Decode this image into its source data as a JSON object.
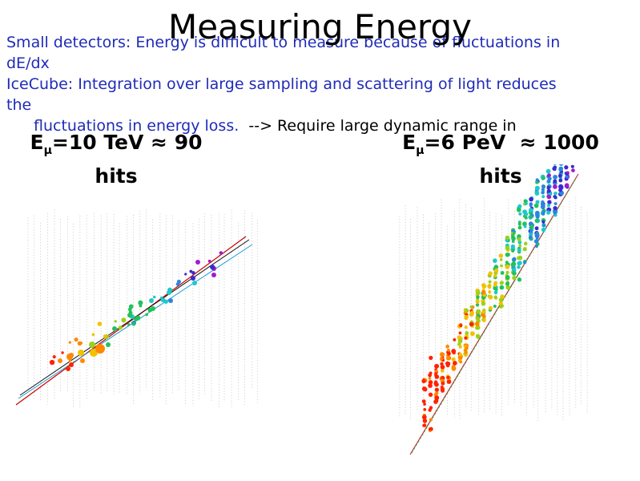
{
  "slide": {
    "title": "Measuring Energy",
    "lines": [
      "Small detectors: Energy is difficult to measure because of fluctuations in",
      "dE/dx",
      "IceCube: Integration over large sampling and scattering of light reduces",
      "the"
    ],
    "line5_blue": "fluctuations in energy loss.",
    "line5_black": "  --> Require large dynamic range in"
  },
  "events": [
    {
      "label_prefix": "E",
      "label_sub": "μ",
      "label_rest": "=10 TeV ≈ 90",
      "label_line2": "hits"
    },
    {
      "label_prefix": "E",
      "label_sub": "μ",
      "label_rest": "=6 PeV  ≈ 1000",
      "label_line2": "hits"
    }
  ]
}
